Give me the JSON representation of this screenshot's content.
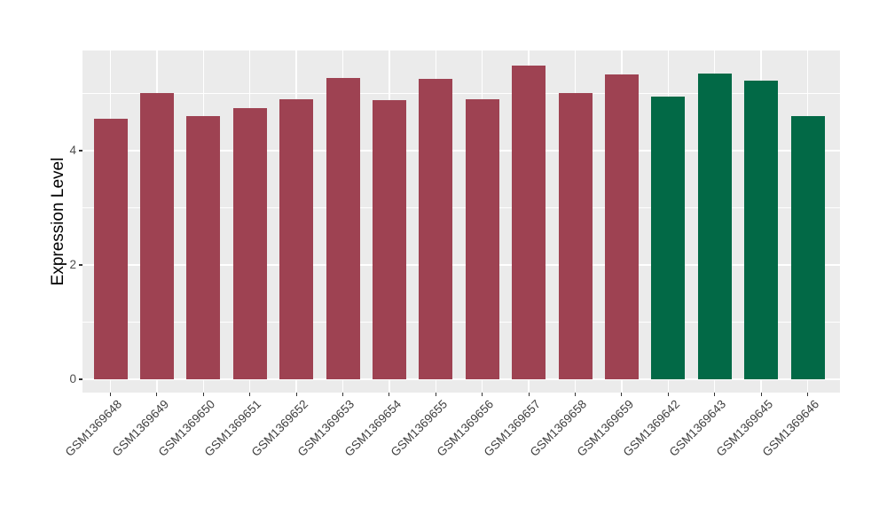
{
  "chart_data": {
    "type": "bar",
    "title": "",
    "xlabel": "",
    "ylabel": "Expression Level",
    "ylim": [
      0,
      5.75
    ],
    "y_ticks": [
      0,
      2,
      4
    ],
    "y_minor_ticks": [
      1,
      3,
      5
    ],
    "grid": "on",
    "legend_position": "none",
    "panel_background": "#ebebeb",
    "grid_color": "#ffffff",
    "tick_color": "#333333",
    "axis_text_color": "#404040",
    "categories": [
      "GSM1369648",
      "GSM1369649",
      "GSM1369650",
      "GSM1369651",
      "GSM1369652",
      "GSM1369653",
      "GSM1369654",
      "GSM1369655",
      "GSM1369656",
      "GSM1369657",
      "GSM1369658",
      "GSM1369659",
      "GSM1369642",
      "GSM1369643",
      "GSM1369645",
      "GSM1369646"
    ],
    "values": [
      4.55,
      5.0,
      4.61,
      4.75,
      4.89,
      5.27,
      4.88,
      5.26,
      4.89,
      5.49,
      5.0,
      5.33,
      4.95,
      5.34,
      5.22,
      4.61
    ],
    "colors": [
      "#9e4252",
      "#9e4252",
      "#9e4252",
      "#9e4252",
      "#9e4252",
      "#9e4252",
      "#9e4252",
      "#9e4252",
      "#9e4252",
      "#9e4252",
      "#9e4252",
      "#9e4252",
      "#026946",
      "#026946",
      "#026946",
      "#026946"
    ],
    "palette": {
      "group_red": "#9e4252",
      "group_green": "#026946"
    }
  }
}
